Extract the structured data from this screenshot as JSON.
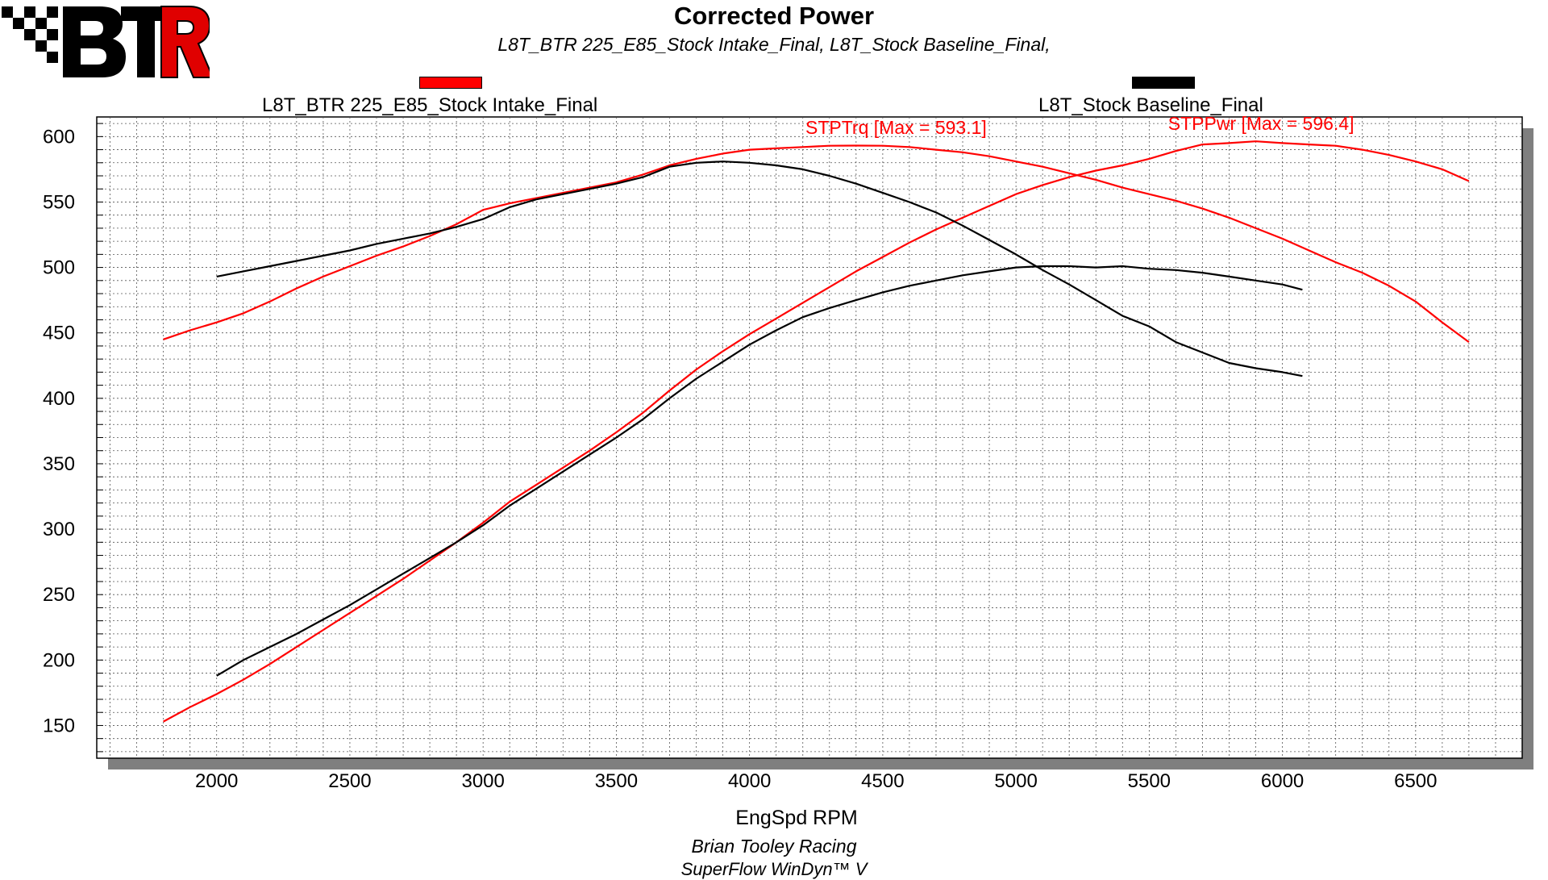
{
  "header": {
    "logo_text": "BTR",
    "title": "Corrected Power",
    "subtitle": "L8T_BTR 225_E85_Stock Intake_Final, L8T_Stock Baseline_Final,"
  },
  "legend": [
    {
      "label": "L8T_BTR 225_E85_Stock Intake_Final",
      "color": "#ff0000"
    },
    {
      "label": "L8T_Stock Baseline_Final",
      "color": "#000000"
    }
  ],
  "footer": {
    "line1": "Brian Tooley Racing",
    "line2": "SuperFlow WinDyn™ V"
  },
  "chart_data": {
    "type": "line",
    "title": "Corrected Power",
    "xlabel": "EngSpd RPM",
    "ylabel": "",
    "xlim": [
      1550,
      6900
    ],
    "ylim": [
      125,
      615
    ],
    "xticks": [
      2000,
      2500,
      3000,
      3500,
      4000,
      4500,
      5000,
      5500,
      6000,
      6500
    ],
    "yticks": [
      150,
      200,
      250,
      300,
      350,
      400,
      450,
      500,
      550,
      600
    ],
    "grid": true,
    "annotations": [
      {
        "text": "STPTrq [Max = 593.1]",
        "color": "#ff0000",
        "x": 4550,
        "y": 602
      },
      {
        "text": "STPPwr [Max = 596.4]",
        "color": "#ff0000",
        "x": 5920,
        "y": 605
      }
    ],
    "series": [
      {
        "name": "STPTrq",
        "run": "L8T_BTR 225_E85_Stock Intake_Final",
        "color": "#ff0000",
        "x": [
          1800,
          1900,
          2000,
          2100,
          2200,
          2300,
          2400,
          2500,
          2600,
          2700,
          2800,
          2900,
          3000,
          3100,
          3200,
          3300,
          3400,
          3500,
          3600,
          3700,
          3800,
          3900,
          4000,
          4100,
          4200,
          4300,
          4400,
          4500,
          4600,
          4700,
          4800,
          4900,
          5000,
          5100,
          5200,
          5300,
          5400,
          5500,
          5600,
          5700,
          5800,
          5900,
          6000,
          6100,
          6200,
          6300,
          6400,
          6500,
          6600,
          6700
        ],
        "y": [
          445,
          452,
          458,
          465,
          474,
          484,
          493,
          501,
          509,
          516,
          524,
          533,
          544,
          549,
          553,
          557,
          561,
          565,
          571,
          578,
          583,
          587,
          590,
          591,
          592,
          593,
          593.1,
          593,
          592,
          590,
          588,
          585,
          581,
          577,
          572,
          567,
          561,
          556,
          551,
          545,
          538,
          530,
          522,
          513,
          504,
          496,
          486,
          474,
          458,
          443
        ]
      },
      {
        "name": "STPPwr",
        "run": "L8T_BTR 225_E85_Stock Intake_Final",
        "color": "#ff0000",
        "x": [
          1800,
          1900,
          2000,
          2100,
          2200,
          2300,
          2400,
          2500,
          2600,
          2700,
          2800,
          2900,
          3000,
          3100,
          3200,
          3300,
          3400,
          3500,
          3600,
          3700,
          3800,
          3900,
          4000,
          4100,
          4200,
          4300,
          4400,
          4500,
          4600,
          4700,
          4800,
          4900,
          5000,
          5100,
          5200,
          5300,
          5400,
          5500,
          5600,
          5700,
          5800,
          5900,
          6000,
          6100,
          6200,
          6300,
          6400,
          6500,
          6600,
          6700
        ],
        "y": [
          153,
          164,
          174,
          185,
          197,
          210,
          223,
          236,
          249,
          262,
          276,
          290,
          305,
          321,
          334,
          347,
          360,
          374,
          389,
          406,
          422,
          436,
          449,
          461,
          473,
          485,
          497,
          508,
          519,
          529,
          538,
          547,
          556,
          563,
          569,
          574,
          578,
          583,
          589,
          594,
          595,
          596.4,
          595,
          594,
          593,
          590,
          586,
          581,
          575,
          566
        ]
      },
      {
        "name": "STPTrq",
        "run": "L8T_Stock Baseline_Final",
        "color": "#000000",
        "x": [
          2000,
          2100,
          2200,
          2300,
          2400,
          2500,
          2600,
          2700,
          2800,
          2900,
          3000,
          3100,
          3200,
          3300,
          3400,
          3500,
          3600,
          3700,
          3800,
          3900,
          4000,
          4100,
          4200,
          4300,
          4400,
          4500,
          4600,
          4700,
          4800,
          4900,
          5000,
          5100,
          5200,
          5300,
          5400,
          5500,
          5600,
          5700,
          5800,
          5900,
          6000,
          6075
        ],
        "y": [
          493,
          497,
          501,
          505,
          509,
          513,
          518,
          522,
          526,
          531,
          537,
          546,
          552,
          556,
          560,
          564,
          569,
          577,
          580,
          581,
          580,
          578,
          575,
          570,
          564,
          557,
          550,
          542,
          532,
          521,
          510,
          498,
          487,
          475,
          463,
          455,
          443,
          435,
          427,
          423,
          420,
          417
        ]
      },
      {
        "name": "STPPwr",
        "run": "L8T_Stock Baseline_Final",
        "color": "#000000",
        "x": [
          2000,
          2100,
          2200,
          2300,
          2400,
          2500,
          2600,
          2700,
          2800,
          2900,
          3000,
          3100,
          3200,
          3300,
          3400,
          3500,
          3600,
          3700,
          3800,
          3900,
          4000,
          4100,
          4200,
          4300,
          4400,
          4500,
          4600,
          4700,
          4800,
          4900,
          5000,
          5100,
          5200,
          5300,
          5400,
          5500,
          5600,
          5700,
          5800,
          5900,
          6000,
          6075
        ],
        "y": [
          188,
          200,
          210,
          220,
          231,
          242,
          254,
          266,
          278,
          290,
          303,
          318,
          331,
          344,
          357,
          370,
          384,
          400,
          415,
          428,
          441,
          452,
          462,
          469,
          475,
          481,
          486,
          490,
          494,
          497,
          500,
          501,
          501,
          500,
          501,
          499,
          498,
          496,
          493,
          490,
          487,
          483
        ]
      }
    ]
  }
}
